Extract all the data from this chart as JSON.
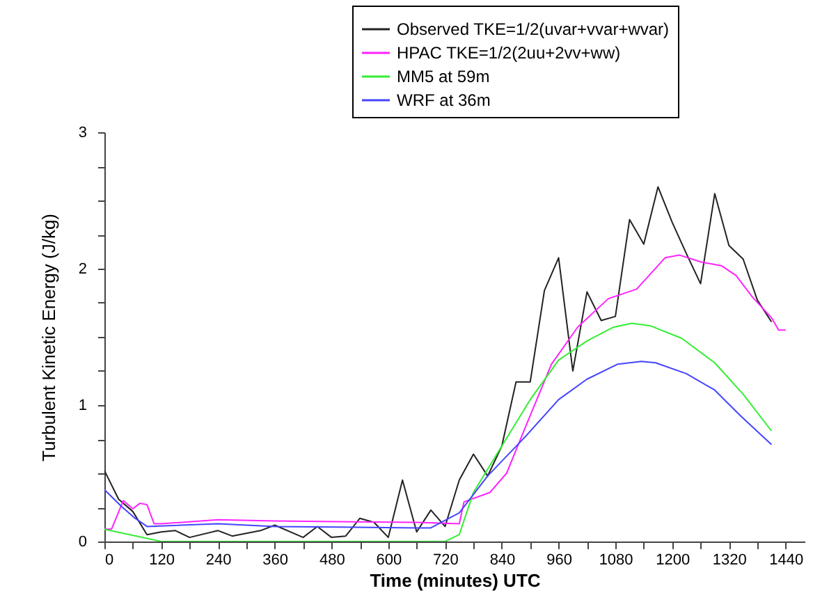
{
  "chart_data": {
    "type": "line",
    "xlabel": "Time (minutes) UTC",
    "ylabel": "Turbulent Kinetic Energy (J/kg)",
    "xlim": [
      0,
      1480
    ],
    "ylim": [
      0,
      3
    ],
    "xticks": [
      0,
      {
        "value": 60,
        "label": null
      },
      120,
      {
        "value": 180,
        "label": null
      },
      240,
      {
        "value": 300,
        "label": null
      },
      360,
      {
        "value": 420,
        "label": null
      },
      480,
      {
        "value": 540,
        "label": null
      },
      600,
      {
        "value": 660,
        "label": null
      },
      720,
      {
        "value": 780,
        "label": null
      },
      840,
      {
        "value": 900,
        "label": null
      },
      960,
      {
        "value": 1020,
        "label": null
      },
      1080,
      {
        "value": 1140,
        "label": null
      },
      1200,
      {
        "value": 1260,
        "label": null
      },
      1320,
      {
        "value": 1380,
        "label": null
      },
      1440
    ],
    "yticks": [
      0,
      {
        "value": 0.25,
        "label": null
      },
      {
        "value": 0.5,
        "label": null
      },
      {
        "value": 0.75,
        "label": null
      },
      1,
      {
        "value": 1.25,
        "label": null
      },
      {
        "value": 1.5,
        "label": null
      },
      {
        "value": 1.75,
        "label": null
      },
      2,
      {
        "value": 2.25,
        "label": null
      },
      {
        "value": 2.5,
        "label": null
      },
      {
        "value": 2.75,
        "label": null
      },
      3
    ],
    "grid": false,
    "legend": "top right",
    "marker": "none",
    "line_style": "solid",
    "series": [
      {
        "name": "Observed TKE=1/2(uvar+vvar+wvar)",
        "color": "#222222",
        "x": [
          0,
          30,
          60,
          90,
          120,
          150,
          180,
          240,
          270,
          300,
          330,
          360,
          420,
          450,
          480,
          510,
          540,
          570,
          600,
          630,
          660,
          690,
          720,
          750,
          780,
          810,
          840,
          870,
          900,
          930,
          960,
          990,
          1020,
          1050,
          1080,
          1110,
          1140,
          1170,
          1200,
          1230,
          1260,
          1290,
          1320,
          1350,
          1380,
          1410
        ],
        "values": [
          0.52,
          0.31,
          0.22,
          0.05,
          0.07,
          0.08,
          0.03,
          0.08,
          0.04,
          0.06,
          0.08,
          0.12,
          0.03,
          0.11,
          0.03,
          0.04,
          0.17,
          0.14,
          0.03,
          0.45,
          0.07,
          0.23,
          0.11,
          0.45,
          0.64,
          0.48,
          0.7,
          1.17,
          1.17,
          1.84,
          2.08,
          1.25,
          1.83,
          1.62,
          1.65,
          2.36,
          2.18,
          2.6,
          2.34,
          2.11,
          1.89,
          2.55,
          2.17,
          2.07,
          1.77,
          1.61
        ]
      },
      {
        "name": "HPAC TKE=1/2(2uu+2vv+ww)",
        "color": "#ff22ff",
        "x": [
          0,
          15,
          40,
          60,
          75,
          90,
          105,
          120,
          240,
          360,
          660,
          750,
          760,
          815,
          850,
          890,
          945,
          1000,
          1065,
          1125,
          1185,
          1215,
          1260,
          1305,
          1335,
          1370,
          1410,
          1425,
          1440
        ],
        "values": [
          0.09,
          0.09,
          0.3,
          0.24,
          0.28,
          0.27,
          0.13,
          0.13,
          0.16,
          0.15,
          0.14,
          0.13,
          0.29,
          0.36,
          0.5,
          0.84,
          1.3,
          1.57,
          1.78,
          1.85,
          2.08,
          2.1,
          2.05,
          2.02,
          1.95,
          1.79,
          1.64,
          1.55,
          1.55
        ]
      },
      {
        "name": "MM5 at 59m",
        "color": "#33ee33",
        "x": [
          0,
          120,
          720,
          750,
          780,
          840,
          900,
          960,
          1020,
          1075,
          1115,
          1155,
          1220,
          1290,
          1350,
          1410
        ],
        "values": [
          0.09,
          0,
          0,
          0.05,
          0.36,
          0.7,
          1.04,
          1.33,
          1.47,
          1.57,
          1.6,
          1.58,
          1.49,
          1.31,
          1.08,
          0.81
        ]
      },
      {
        "name": "WRF at 36m",
        "color": "#4444ff",
        "x": [
          0,
          35,
          65,
          90,
          240,
          360,
          660,
          690,
          750,
          810,
          890,
          960,
          1020,
          1085,
          1135,
          1165,
          1230,
          1290,
          1345,
          1410
        ],
        "values": [
          0.38,
          0.26,
          0.17,
          0.11,
          0.13,
          0.11,
          0.1,
          0.1,
          0.21,
          0.48,
          0.77,
          1.04,
          1.19,
          1.3,
          1.32,
          1.31,
          1.23,
          1.11,
          0.92,
          0.71
        ]
      }
    ]
  }
}
